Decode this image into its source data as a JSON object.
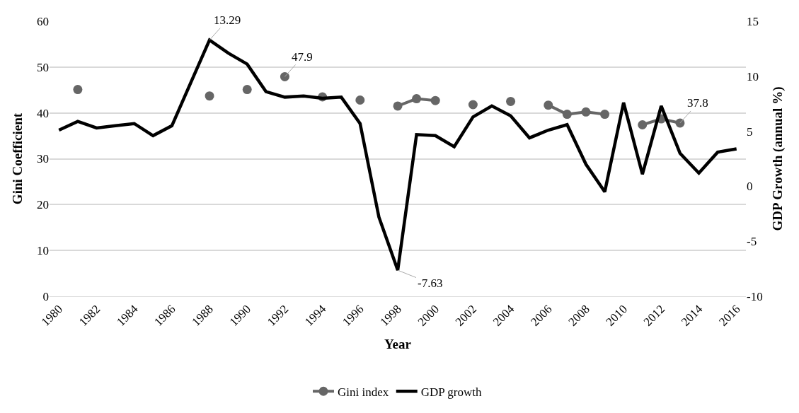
{
  "chart_data": {
    "type": "line",
    "xlabel": "Year",
    "ylabel": "Gini Coefficient",
    "y2label": "GDP Growth (annual %)",
    "x": [
      1980,
      1981,
      1982,
      1983,
      1984,
      1985,
      1986,
      1987,
      1988,
      1989,
      1990,
      1991,
      1992,
      1993,
      1994,
      1995,
      1996,
      1997,
      1998,
      1999,
      2000,
      2001,
      2002,
      2003,
      2004,
      2005,
      2006,
      2007,
      2008,
      2009,
      2010,
      2011,
      2012,
      2013,
      2014,
      2015,
      2016
    ],
    "series": [
      {
        "name": "Gini index",
        "color": "#666666",
        "marker": "circle",
        "values": [
          null,
          45.1,
          null,
          null,
          null,
          null,
          null,
          null,
          43.7,
          null,
          45.1,
          null,
          47.9,
          null,
          43.5,
          null,
          42.8,
          null,
          41.5,
          43.1,
          42.7,
          null,
          41.8,
          null,
          42.5,
          null,
          41.7,
          39.7,
          40.2,
          39.7,
          null,
          37.4,
          38.7,
          37.8,
          null,
          null,
          null
        ],
        "value_labels": [
          null,
          null,
          null,
          null,
          null,
          null,
          null,
          null,
          null,
          null,
          null,
          null,
          "47.9",
          null,
          null,
          null,
          null,
          null,
          null,
          null,
          null,
          null,
          null,
          null,
          null,
          null,
          null,
          null,
          null,
          null,
          null,
          null,
          null,
          "37.8",
          null,
          null,
          null
        ]
      },
      {
        "name": "GDP growth",
        "color": "#000000",
        "axis": "y2",
        "marker": "none",
        "values": [
          5.1,
          5.9,
          5.3,
          5.5,
          5.7,
          4.6,
          5.5,
          9.4,
          13.29,
          12.1,
          11.1,
          8.6,
          8.1,
          8.2,
          8.0,
          8.1,
          5.7,
          -2.8,
          -7.63,
          4.7,
          4.6,
          3.6,
          6.3,
          7.3,
          6.4,
          4.4,
          5.1,
          5.6,
          2.0,
          -0.5,
          7.6,
          1.1,
          7.3,
          3.0,
          1.2,
          3.1,
          3.4
        ],
        "value_labels": [
          null,
          null,
          null,
          null,
          null,
          null,
          null,
          null,
          "13.29",
          null,
          null,
          null,
          null,
          null,
          null,
          null,
          null,
          null,
          "-7.63",
          null,
          null,
          null,
          null,
          null,
          null,
          null,
          null,
          null,
          null,
          null,
          null,
          null,
          null,
          null,
          null,
          null,
          null
        ]
      }
    ],
    "xlim": [
      1979.5,
      2016.5
    ],
    "xticks": [
      1980,
      1982,
      1984,
      1986,
      1988,
      1990,
      1992,
      1994,
      1996,
      1998,
      2000,
      2002,
      2004,
      2006,
      2008,
      2010,
      2012,
      2014,
      2016
    ],
    "ylim": [
      0,
      60
    ],
    "yticks": [
      0,
      10,
      20,
      30,
      40,
      50,
      60
    ],
    "y2lim": [
      -10,
      15
    ],
    "y2ticks": [
      -10,
      -5,
      0,
      5,
      10,
      15
    ],
    "grid": "y",
    "legend": "bottom",
    "line_style": "solid"
  }
}
